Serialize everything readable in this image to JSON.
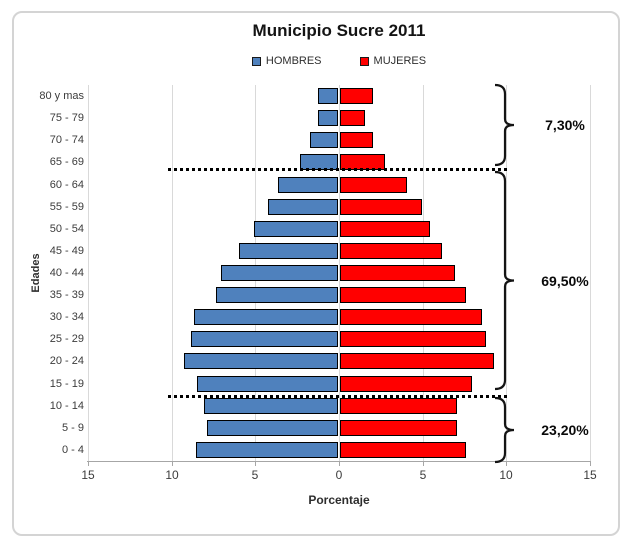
{
  "window": {
    "background": "#ffffff",
    "frame_border": "#d4d4d4"
  },
  "chart_data": {
    "type": "bar",
    "variant": "population-pyramid",
    "title": "Municipio Sucre 2011",
    "xlabel": "Porcentaje",
    "ylabel": "Edades",
    "grid": true,
    "xlim": [
      -15,
      15
    ],
    "x_ticks": [
      "15",
      "10",
      "5",
      "0",
      "5",
      "10",
      "15"
    ],
    "categories": [
      "80 y mas",
      "75 - 79",
      "70 - 74",
      "65 - 69",
      "60 - 64",
      "55 - 59",
      "50 - 54",
      "45 - 49",
      "40 - 44",
      "35 - 39",
      "30 - 34",
      "25 - 29",
      "20 - 24",
      "15 - 19",
      "10 - 14",
      "5 - 9",
      "0 - 4"
    ],
    "series": [
      {
        "name": "HOMBRES",
        "side": "left",
        "color": "#4F81BD",
        "values": [
          1.2,
          1.2,
          1.7,
          2.3,
          3.6,
          4.2,
          5.0,
          5.9,
          7.0,
          7.3,
          8.6,
          8.8,
          9.2,
          8.4,
          8.0,
          7.8,
          8.5
        ]
      },
      {
        "name": "MUJERES",
        "side": "right",
        "color": "#FF0000",
        "values": [
          2.0,
          1.5,
          2.0,
          2.7,
          4.0,
          4.9,
          5.4,
          6.1,
          6.9,
          7.5,
          8.5,
          8.7,
          9.2,
          7.9,
          7.0,
          7.0,
          7.5
        ]
      }
    ],
    "separators": [
      {
        "after_row": 3
      },
      {
        "after_row": 13
      }
    ],
    "annotations": [
      {
        "label": "7,30%",
        "from_row": 0,
        "to_row": 3
      },
      {
        "label": "69,50%",
        "from_row": 4,
        "to_row": 13
      },
      {
        "label": "23,20%",
        "from_row": 14,
        "to_row": 16
      }
    ],
    "legend_position": "top",
    "colors": {
      "bar_border": "#000000",
      "gridline": "#d9d9d9",
      "axis": "#a6a6a6",
      "separator": "#000000",
      "bracket": "#141414"
    }
  }
}
